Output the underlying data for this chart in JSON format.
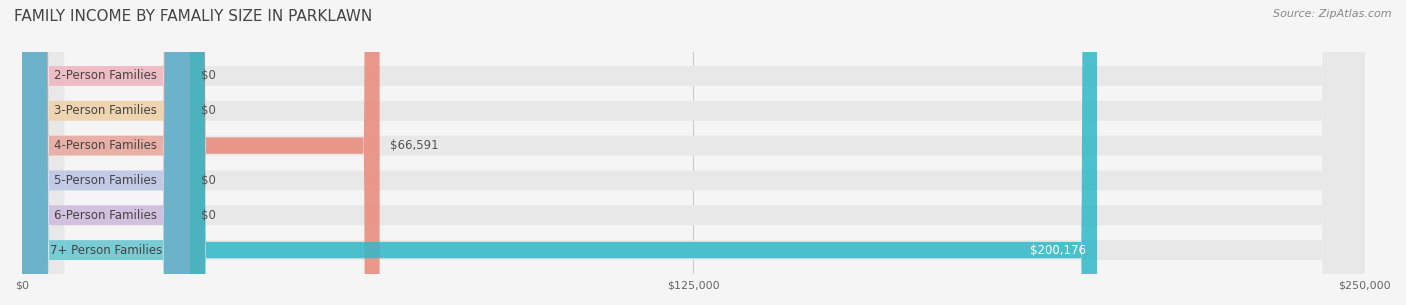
{
  "title": "FAMILY INCOME BY FAMALIY SIZE IN PARKLAWN",
  "source": "Source: ZipAtlas.com",
  "categories": [
    "2-Person Families",
    "3-Person Families",
    "4-Person Families",
    "5-Person Families",
    "6-Person Families",
    "7+ Person Families"
  ],
  "values": [
    0,
    0,
    66591,
    0,
    0,
    200176
  ],
  "bar_colors": [
    "#f4a0b0",
    "#f5c98a",
    "#e8897a",
    "#a8b8e8",
    "#c4a8d8",
    "#30b8c8"
  ],
  "label_colors": [
    "#f4a0b0",
    "#f5c98a",
    "#e8897a",
    "#a8b8e8",
    "#c4a8d8",
    "#30b8c8"
  ],
  "value_labels": [
    "$0",
    "$0",
    "$66,591",
    "$0",
    "$0",
    "$200,176"
  ],
  "xlim": [
    0,
    250000
  ],
  "xticks": [
    0,
    125000,
    250000
  ],
  "xtick_labels": [
    "$0",
    "$125,000",
    "$250,000"
  ],
  "bar_height": 0.55,
  "background_color": "#f5f5f5",
  "bar_bg_color": "#e8e8e8",
  "title_fontsize": 11,
  "source_fontsize": 8,
  "label_fontsize": 8.5,
  "value_fontsize": 8.5
}
